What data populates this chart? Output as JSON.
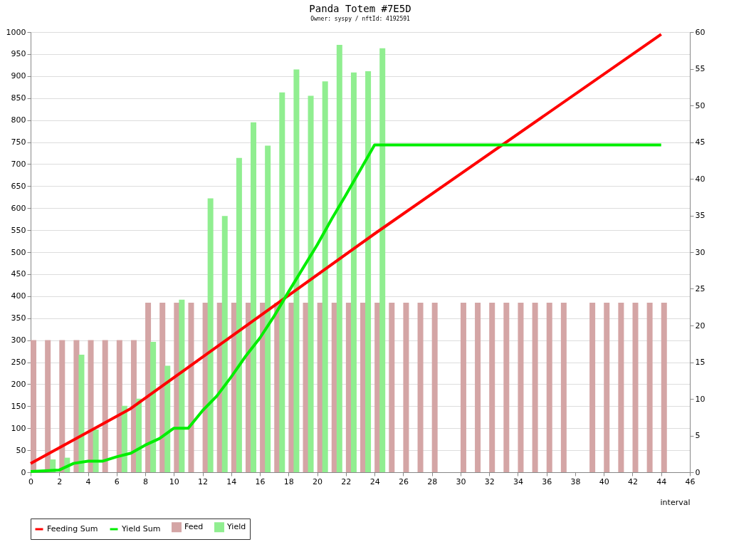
{
  "chart_data": {
    "type": "bar",
    "title": "Panda Totem #7E5D",
    "subtitle": "Owner: syspy / nftId: 4192591",
    "xlabel": "interval",
    "xlim": [
      0,
      46
    ],
    "xticks": [
      0,
      2,
      4,
      6,
      8,
      10,
      12,
      14,
      16,
      18,
      20,
      22,
      24,
      26,
      28,
      30,
      32,
      34,
      36,
      38,
      40,
      42,
      44,
      46
    ],
    "ylim": [
      0,
      1000
    ],
    "yticks": [
      0,
      50,
      100,
      150,
      200,
      250,
      300,
      350,
      400,
      450,
      500,
      550,
      600,
      650,
      700,
      750,
      800,
      850,
      900,
      950,
      1000
    ],
    "y2lim": [
      0,
      60
    ],
    "y2ticks": [
      0,
      5,
      10,
      15,
      20,
      25,
      30,
      35,
      40,
      45,
      50,
      55,
      60
    ],
    "grid": "y",
    "legend": "bottom",
    "series": [
      {
        "name": "Feeding Sum",
        "type": "line",
        "axis": "y2",
        "color": "#ff0000",
        "x": [
          0,
          7,
          24,
          44
        ],
        "values": [
          1.2,
          8.7,
          32.5,
          59.7
        ]
      },
      {
        "name": "Yield Sum",
        "type": "line",
        "axis": "y2",
        "color": "#00ee00",
        "x": [
          0,
          1,
          2,
          3,
          4,
          5,
          6,
          7,
          8,
          9,
          10,
          11,
          12,
          13,
          14,
          15,
          16,
          17,
          18,
          19,
          20,
          21,
          22,
          23,
          24,
          44
        ],
        "values": [
          0.1,
          0.2,
          0.3,
          1.2,
          1.5,
          1.5,
          2.1,
          2.6,
          3.7,
          4.6,
          6.0,
          6.0,
          8.4,
          10.4,
          13.0,
          15.8,
          18.3,
          21.3,
          24.6,
          27.8,
          31.0,
          34.5,
          37.8,
          41.2,
          44.6,
          44.6
        ]
      },
      {
        "name": "Feed",
        "color": "#d4a5a5",
        "x": [
          0.2,
          1.2,
          2.2,
          3.2,
          4.2,
          5.2,
          6.2,
          7.2,
          8.2,
          9.2,
          10.2,
          11.2,
          12.2,
          13.2,
          14.2,
          15.2,
          16.2,
          17.2,
          18.2,
          19.2,
          20.2,
          21.2,
          22.2,
          23.2,
          24.2,
          25.2,
          26.2,
          27.2,
          28.2,
          30.2,
          31.2,
          32.2,
          33.2,
          34.2,
          35.2,
          36.2,
          37.2,
          39.2,
          40.2,
          41.2,
          42.2,
          43.2,
          44.2
        ],
        "values": [
          300,
          300,
          300,
          300,
          300,
          300,
          300,
          300,
          385,
          385,
          385,
          385,
          385,
          385,
          385,
          385,
          385,
          385,
          385,
          385,
          385,
          385,
          385,
          385,
          385,
          385,
          385,
          385,
          385,
          385,
          385,
          385,
          385,
          385,
          385,
          385,
          385,
          385,
          385,
          385,
          385,
          385,
          385
        ]
      },
      {
        "name": "Yield",
        "color": "#90ee90",
        "x": [
          1.55,
          2.55,
          3.55,
          4.55,
          6.55,
          7.55,
          8.55,
          9.55,
          10.55,
          12.55,
          13.55,
          14.55,
          15.55,
          16.55,
          17.55,
          18.55,
          19.55,
          20.55,
          21.55,
          22.55,
          23.55,
          24.55
        ],
        "values": [
          29,
          33,
          267,
          97,
          151,
          167,
          296,
          242,
          392,
          622,
          582,
          714,
          795,
          742,
          863,
          915,
          855,
          888,
          971,
          908,
          911,
          963
        ]
      }
    ]
  }
}
